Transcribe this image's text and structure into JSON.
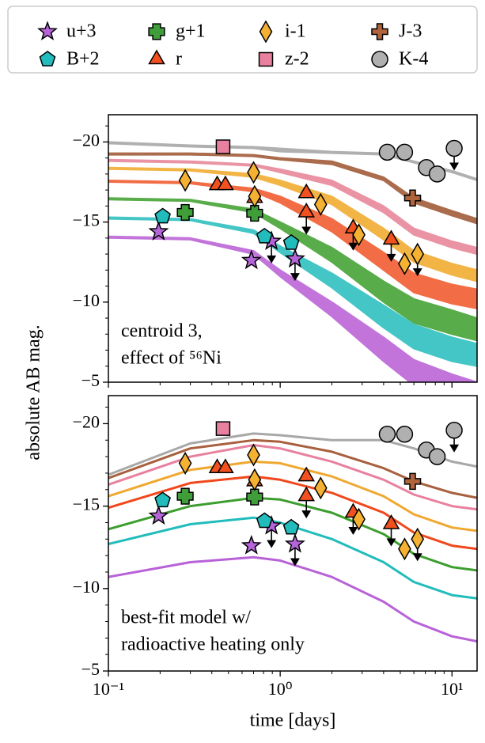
{
  "chart_data": {
    "type": "scatter",
    "x_label": "time [days]",
    "y_label": "absolute AB mag.",
    "x_log": true,
    "xlim": [
      0.1,
      14
    ],
    "xticks": [
      {
        "value": 0.1,
        "label": "10⁻¹"
      },
      {
        "value": 1,
        "label": "10⁰"
      },
      {
        "value": 10,
        "label": "10¹"
      }
    ],
    "legend_ncol": 4,
    "observations": [
      {
        "name": "u+3",
        "color": "#b565d8",
        "marker": "star",
        "x": [
          0.196,
          0.68,
          0.89,
          1.22
        ],
        "values": [
          -14.4,
          -12.6,
          -13.8,
          -12.7
        ],
        "limit": [
          false,
          false,
          true,
          true
        ]
      },
      {
        "name": "B+2",
        "color": "#22bcbc",
        "marker": "pentagon",
        "x": [
          0.207,
          0.81,
          1.16
        ],
        "values": [
          -15.35,
          -14.1,
          -13.7
        ],
        "limit": [
          false,
          false,
          false
        ]
      },
      {
        "name": "g+1",
        "color": "#3f9e3a",
        "marker": "cross",
        "x": [
          0.28,
          0.71
        ],
        "values": [
          -15.6,
          -15.55
        ],
        "limit": [
          false,
          false
        ]
      },
      {
        "name": "r",
        "color": "#f2501e",
        "marker": "triangle",
        "x": [
          0.43,
          0.48,
          0.71,
          1.42,
          1.42,
          2.66,
          4.43
        ],
        "values": [
          -17.3,
          -17.3,
          -16.5,
          -16.8,
          -15.6,
          -14.6,
          -13.9
        ],
        "limit": [
          false,
          false,
          false,
          false,
          true,
          true,
          true
        ]
      },
      {
        "name": "i-1",
        "color": "#f5b232",
        "marker": "diamond",
        "x": [
          0.28,
          0.7,
          0.71,
          1.72,
          2.87,
          5.3,
          6.3
        ],
        "values": [
          -17.6,
          -18.1,
          -16.6,
          -16.1,
          -14.2,
          -12.4,
          -13.0
        ],
        "limit": [
          false,
          false,
          false,
          false,
          false,
          false,
          true
        ]
      },
      {
        "name": "z-2",
        "color": "#e8819f",
        "marker": "square",
        "x": [
          0.465
        ],
        "values": [
          -19.7
        ],
        "limit": [
          false
        ]
      },
      {
        "name": "J-3",
        "color": "#b0643c",
        "marker": "plus",
        "x": [
          5.9
        ],
        "values": [
          -16.5
        ],
        "limit": [
          false
        ]
      },
      {
        "name": "K-4",
        "color": "#b0b0b0",
        "marker": "circle",
        "x": [
          4.2,
          5.3,
          7.1,
          8.2,
          10.3
        ],
        "values": [
          -19.36,
          -19.36,
          -18.4,
          -18.0,
          -19.6
        ],
        "limit": [
          false,
          false,
          false,
          false,
          true
        ]
      }
    ],
    "panels": [
      {
        "ylim": [
          -5,
          -21.7
        ],
        "yticks": [
          {
            "value": -20,
            "label": "−20"
          },
          {
            "value": -15,
            "label": "−15"
          },
          {
            "value": -10,
            "label": "−10"
          },
          {
            "value": -5,
            "label": "−5"
          }
        ],
        "annotation": [
          "centroid 3,",
          "effect of ⁵⁶Ni"
        ],
        "model_style": "band",
        "model_x": [
          0.1,
          0.3,
          0.7,
          1,
          2,
          4,
          6,
          10,
          14
        ],
        "models": [
          {
            "color": "#b0b0b0",
            "values": [
              -20.0,
              -19.8,
              -19.7,
              -19.6,
              -19.4,
              -19.3,
              -18.8,
              -18.2,
              -17.7
            ],
            "values_lo": [
              -19.9,
              -19.7,
              -19.6,
              -19.4,
              -19.3,
              -19.2,
              -18.7,
              -18.1,
              -17.6
            ]
          },
          {
            "color": "#aa6c4c",
            "values": [
              -19.3,
              -19.3,
              -19.2,
              -19.0,
              -18.8,
              -17.8,
              -16.5,
              -15.7,
              -15.2
            ],
            "values_lo": [
              -19.2,
              -19.2,
              -19.1,
              -18.9,
              -18.6,
              -17.6,
              -16.2,
              -15.4,
              -14.9
            ]
          },
          {
            "color": "#ea93a4",
            "values": [
              -18.9,
              -18.8,
              -18.6,
              -18.3,
              -17.6,
              -16.0,
              -14.6,
              -13.8,
              -13.4
            ],
            "values_lo": [
              -18.8,
              -18.7,
              -18.5,
              -18.1,
              -17.3,
              -15.6,
              -14.2,
              -13.4,
              -13.0
            ]
          },
          {
            "color": "#f2b445",
            "values": [
              -18.4,
              -18.3,
              -18.0,
              -17.6,
              -16.6,
              -14.6,
              -13.2,
              -12.4,
              -12.0
            ],
            "values_lo": [
              -18.3,
              -18.2,
              -17.8,
              -17.3,
              -16.1,
              -13.9,
              -12.5,
              -11.7,
              -11.3
            ]
          },
          {
            "color": "#f26c45",
            "values": [
              -17.6,
              -17.5,
              -17.1,
              -16.6,
              -15.2,
              -13.1,
              -11.8,
              -11.1,
              -10.8
            ],
            "values_lo": [
              -17.5,
              -17.4,
              -16.9,
              -16.2,
              -14.4,
              -12.0,
              -10.6,
              -9.9,
              -9.6
            ]
          },
          {
            "color": "#58ad4a",
            "values": [
              -16.5,
              -16.4,
              -15.8,
              -15.0,
              -13.4,
              -11.3,
              -10.2,
              -9.5,
              -9.0
            ],
            "values_lo": [
              -16.4,
              -16.3,
              -15.6,
              -14.6,
              -12.5,
              -10.0,
              -8.7,
              -8.0,
              -7.6
            ]
          },
          {
            "color": "#45c6c6",
            "values": [
              -15.3,
              -15.2,
              -14.5,
              -13.5,
              -11.8,
              -9.8,
              -8.6,
              -7.8,
              -7.4
            ],
            "values_lo": [
              -15.2,
              -15.1,
              -14.3,
              -13.1,
              -10.9,
              -8.4,
              -7.1,
              -6.3,
              -6.0
            ]
          },
          {
            "color": "#c274db",
            "values": [
              -14.1,
              -14.0,
              -13.2,
              -12.0,
              -10.0,
              -7.8,
              -6.4,
              -5.5,
              -5.0
            ],
            "values_lo": [
              -14.0,
              -13.9,
              -13.0,
              -11.6,
              -9.1,
              -6.3,
              -4.8,
              -3.9,
              -3.4
            ]
          }
        ]
      },
      {
        "ylim": [
          -5,
          -21.7
        ],
        "yticks": [
          {
            "value": -20,
            "label": "−20"
          },
          {
            "value": -15,
            "label": "−15"
          },
          {
            "value": -10,
            "label": "−10"
          },
          {
            "value": -5,
            "label": "−5"
          }
        ],
        "annotation": [
          "best-fit model w/",
          "radioactive heating only"
        ],
        "model_style": "line",
        "model_x": [
          0.1,
          0.3,
          0.7,
          1,
          2,
          4,
          6,
          10,
          14
        ],
        "models": [
          {
            "color": "#a8a8a8",
            "values": [
              -16.9,
              -18.8,
              -19.4,
              -19.3,
              -19.0,
              -19.0,
              -18.5,
              -17.7,
              -17.4
            ]
          },
          {
            "color": "#a8603e",
            "values": [
              -16.7,
              -18.5,
              -19.0,
              -18.9,
              -18.3,
              -17.3,
              -16.5,
              -15.8,
              -15.5
            ]
          },
          {
            "color": "#e8819f",
            "values": [
              -16.3,
              -18.0,
              -18.7,
              -18.5,
              -17.7,
              -16.6,
              -15.7,
              -15.0,
              -14.8
            ]
          },
          {
            "color": "#f0a830",
            "values": [
              -15.6,
              -17.2,
              -17.7,
              -17.6,
              -16.8,
              -15.6,
              -14.5,
              -13.7,
              -13.5
            ]
          },
          {
            "color": "#f0481c",
            "values": [
              -14.9,
              -16.4,
              -16.8,
              -16.6,
              -15.8,
              -14.6,
              -13.4,
              -12.6,
              -12.4
            ]
          },
          {
            "color": "#3c9e2e",
            "values": [
              -13.6,
              -15.0,
              -15.5,
              -15.4,
              -14.6,
              -13.3,
              -12.1,
              -11.3,
              -11.1
            ]
          },
          {
            "color": "#22bcbc",
            "values": [
              -12.7,
              -13.9,
              -14.3,
              -14.0,
              -13.0,
              -11.6,
              -10.4,
              -9.6,
              -9.4
            ]
          },
          {
            "color": "#b862d8",
            "values": [
              -10.7,
              -11.6,
              -11.9,
              -11.7,
              -10.7,
              -9.2,
              -8.0,
              -7.1,
              -6.8
            ]
          }
        ]
      }
    ]
  }
}
